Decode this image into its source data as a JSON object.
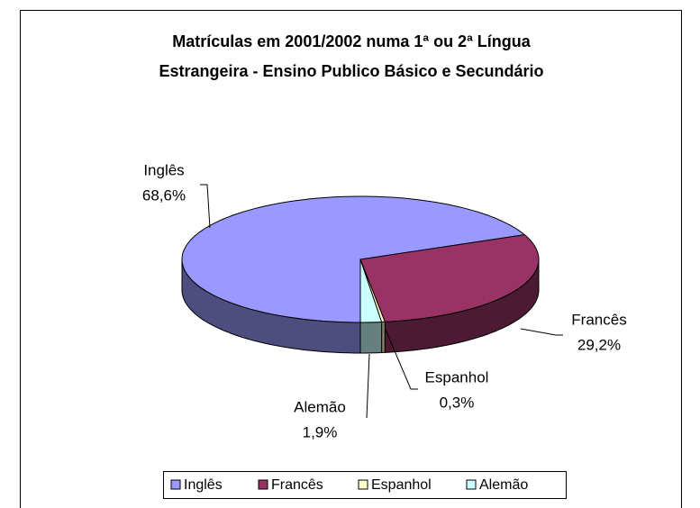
{
  "chart_data": {
    "type": "pie",
    "title": [
      "Matrículas em 2001/2002 numa 1ª ou 2ª Língua",
      "Estrangeira - Ensino Publico Básico e Secundário"
    ],
    "categories": [
      "Inglês",
      "Francês",
      "Espanhol",
      "Alemão"
    ],
    "values": [
      68.6,
      29.2,
      0.3,
      1.9
    ],
    "value_labels": [
      "68,6%",
      "29,2%",
      "0,3%",
      "1,9%"
    ],
    "colors": [
      "#9999ff",
      "#993366",
      "#ffffcc",
      "#ccffff"
    ],
    "legend": "bottom"
  }
}
